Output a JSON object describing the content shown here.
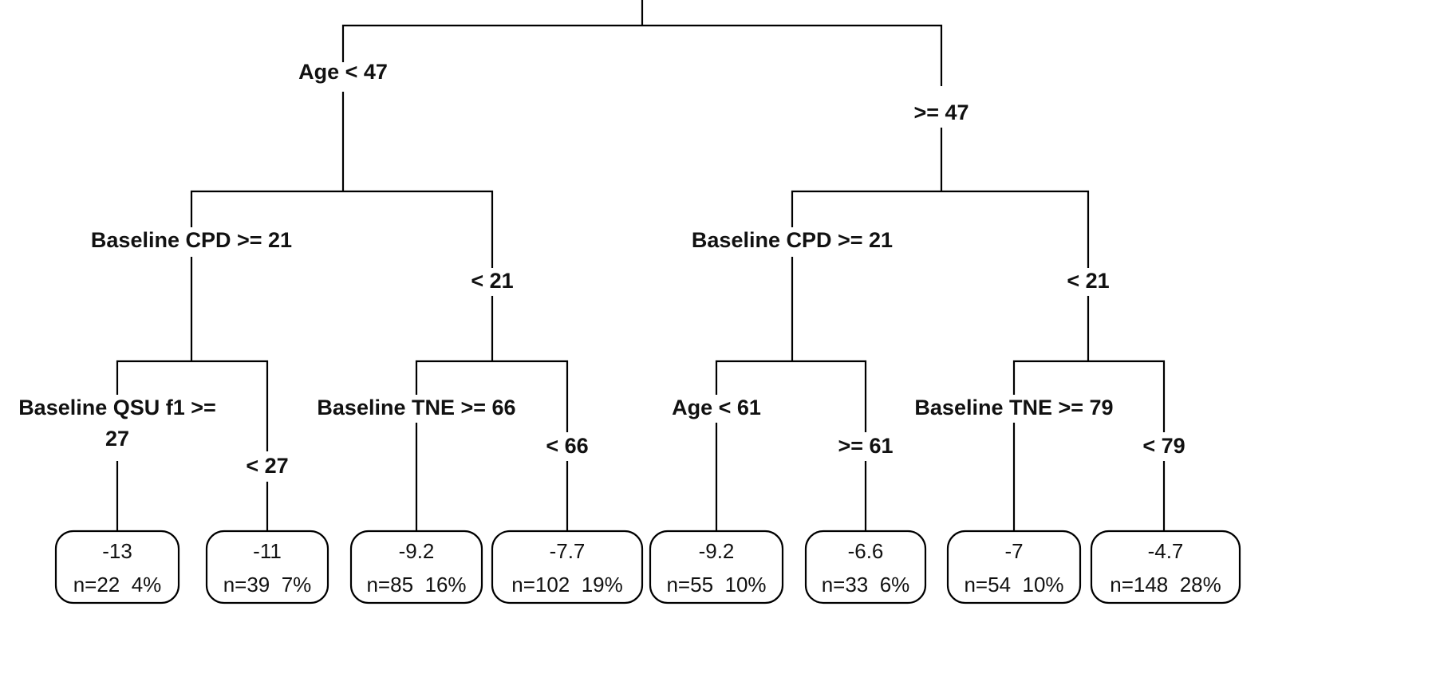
{
  "tree": {
    "splits": [
      {
        "id": "root-left",
        "text": "Age < 47"
      },
      {
        "id": "root-right",
        "text": ">= 47"
      },
      {
        "id": "l-left",
        "text": "Baseline CPD >= 21"
      },
      {
        "id": "l-right",
        "text": "< 21"
      },
      {
        "id": "r-left",
        "text": "Baseline CPD >= 21"
      },
      {
        "id": "r-right",
        "text": "< 21"
      },
      {
        "id": "ll-left-1",
        "text": "Baseline QSU f1 >="
      },
      {
        "id": "ll-left-2",
        "text": "27"
      },
      {
        "id": "ll-right",
        "text": "< 27"
      },
      {
        "id": "lr-left",
        "text": "Baseline TNE >= 66"
      },
      {
        "id": "lr-right",
        "text": "< 66"
      },
      {
        "id": "rl-left",
        "text": "Age < 61"
      },
      {
        "id": "rl-right",
        "text": ">= 61"
      },
      {
        "id": "rr-left",
        "text": "Baseline TNE >= 79"
      },
      {
        "id": "rr-right",
        "text": "< 79"
      }
    ],
    "leaves": [
      {
        "value": "-13",
        "stats": "n=22  4%"
      },
      {
        "value": "-11",
        "stats": "n=39  7%"
      },
      {
        "value": "-9.2",
        "stats": "n=85  16%"
      },
      {
        "value": "-7.7",
        "stats": "n=102  19%"
      },
      {
        "value": "-9.2",
        "stats": "n=55  10%"
      },
      {
        "value": "-6.6",
        "stats": "n=33  6%"
      },
      {
        "value": "-7",
        "stats": "n=54  10%"
      },
      {
        "value": "-4.7",
        "stats": "n=148  28%"
      }
    ]
  }
}
